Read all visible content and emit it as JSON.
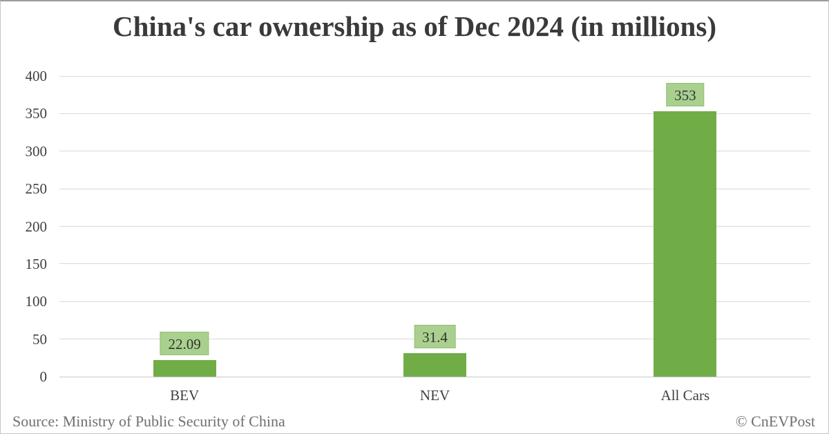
{
  "chart_data": {
    "type": "bar",
    "title": "China's car ownership as of Dec 2024 (in millions)",
    "categories": [
      "BEV",
      "NEV",
      "All Cars"
    ],
    "values": [
      22.09,
      31.4,
      353
    ],
    "value_labels": [
      "22.09",
      "31.4",
      "353"
    ],
    "xlabel": "",
    "ylabel": "",
    "ylim": [
      0,
      400
    ],
    "yticks": [
      0,
      50,
      100,
      150,
      200,
      250,
      300,
      350,
      400
    ],
    "grid": true,
    "legend": "none"
  },
  "footer": {
    "source": "Source: Ministry of Public Security of China",
    "copyright": "© CnEVPost"
  },
  "colors": {
    "background": "#ffffff",
    "bar_fill": "#70ad47",
    "data_label_bg": "#a9d08e",
    "data_label_text": "#333333",
    "gridline": "#d9d9d9",
    "axis_line": "#c6c6c6",
    "title_text": "#3a3a3a",
    "tick_text": "#404040",
    "footer_text": "#6f6f6f"
  }
}
